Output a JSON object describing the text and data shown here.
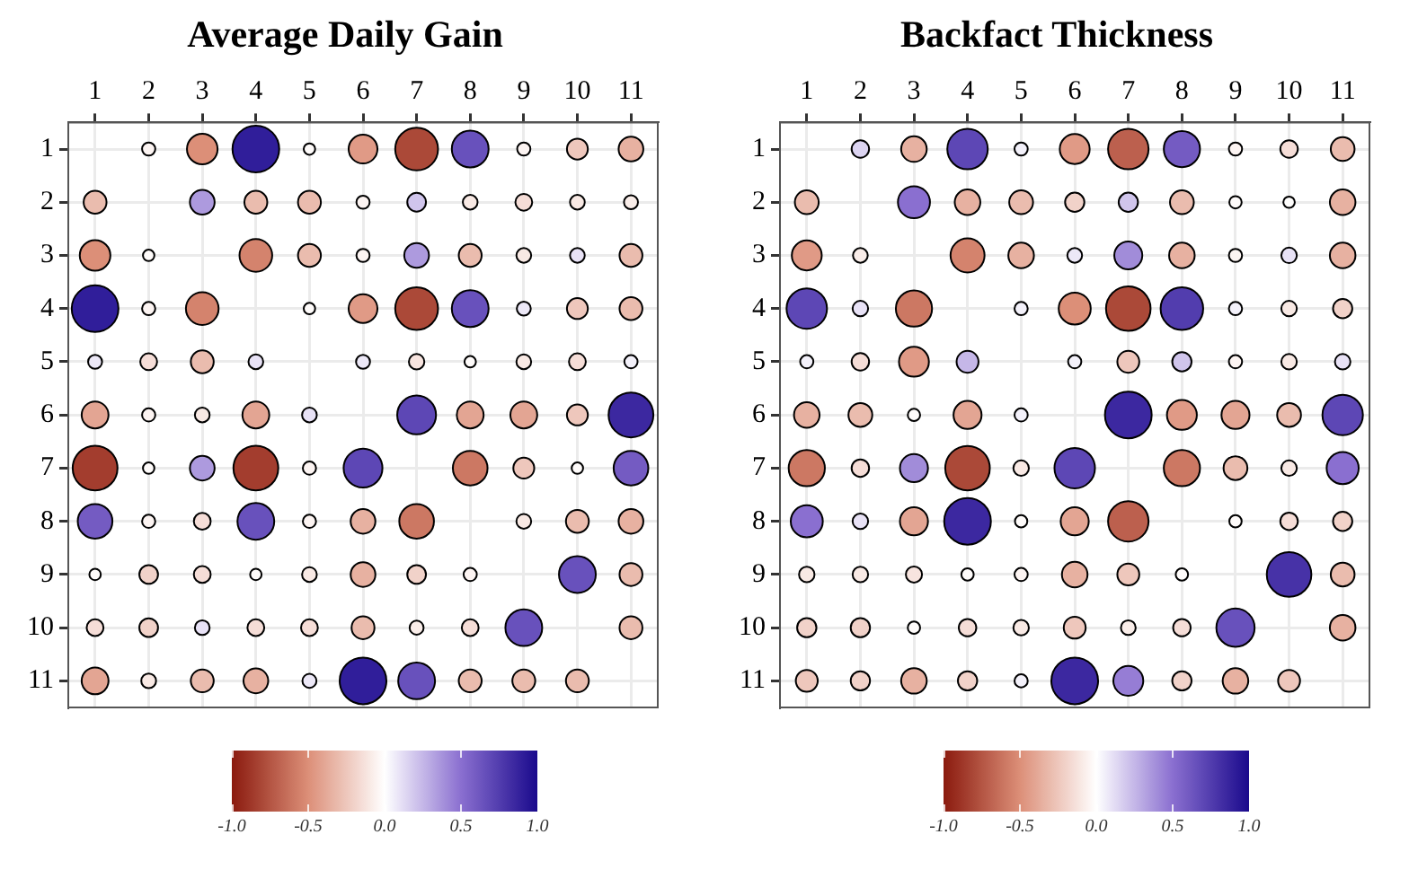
{
  "chart_data": [
    {
      "type": "bubble",
      "title": "Average Daily Gain",
      "xlim": [
        0.5,
        11.5
      ],
      "xticks": [
        1,
        2,
        3,
        4,
        5,
        6,
        7,
        8,
        9,
        10,
        11
      ],
      "ylim": [
        11.5,
        0.5
      ],
      "yticks": [
        1,
        2,
        3,
        4,
        5,
        6,
        7,
        8,
        9,
        10,
        11
      ],
      "grid": true,
      "marker": "circle",
      "clim": [
        -1,
        1
      ],
      "cticks": [
        {
          "value": -1,
          "label": "-1.0"
        },
        {
          "value": -0.5,
          "label": "-0.5"
        },
        {
          "value": 0,
          "label": "0.0"
        },
        {
          "value": 0.5,
          "label": "0.5"
        },
        {
          "value": 1,
          "label": "1.0"
        }
      ],
      "x": [
        2,
        3,
        4,
        5,
        6,
        7,
        8,
        9,
        10,
        11,
        1,
        3,
        4,
        5,
        6,
        7,
        8,
        9,
        10,
        11,
        1,
        2,
        4,
        5,
        6,
        7,
        8,
        9,
        10,
        11,
        1,
        2,
        3,
        5,
        6,
        7,
        8,
        9,
        10,
        11,
        1,
        2,
        3,
        4,
        6,
        7,
        8,
        9,
        10,
        11,
        1,
        2,
        3,
        4,
        5,
        7,
        8,
        9,
        10,
        11,
        1,
        2,
        3,
        4,
        5,
        6,
        8,
        9,
        10,
        11,
        1,
        2,
        3,
        4,
        5,
        6,
        7,
        9,
        10,
        11,
        1,
        2,
        3,
        4,
        5,
        6,
        7,
        8,
        10,
        11,
        1,
        2,
        3,
        4,
        5,
        6,
        7,
        8,
        9,
        11,
        1,
        2,
        3,
        4,
        5,
        6,
        7,
        8,
        9,
        10
      ],
      "values": [
        1,
        1,
        1,
        1,
        1,
        1,
        1,
        1,
        1,
        1,
        2,
        2,
        2,
        2,
        2,
        2,
        2,
        2,
        2,
        2,
        3,
        3,
        3,
        3,
        3,
        3,
        3,
        3,
        3,
        3,
        4,
        4,
        4,
        4,
        4,
        4,
        4,
        4,
        4,
        4,
        5,
        5,
        5,
        5,
        5,
        5,
        5,
        5,
        5,
        5,
        6,
        6,
        6,
        6,
        6,
        6,
        6,
        6,
        6,
        6,
        7,
        7,
        7,
        7,
        7,
        7,
        7,
        7,
        7,
        7,
        8,
        8,
        8,
        8,
        8,
        8,
        8,
        8,
        8,
        8,
        9,
        9,
        9,
        9,
        9,
        9,
        9,
        9,
        9,
        9,
        10,
        10,
        10,
        10,
        10,
        10,
        10,
        10,
        10,
        10,
        11,
        11,
        11,
        11,
        11,
        11,
        11,
        11,
        11,
        11
      ],
      "cvalues": [
        -0.05,
        -0.5,
        0.9,
        -0.02,
        -0.45,
        -0.8,
        0.65,
        -0.05,
        -0.25,
        -0.35,
        -0.3,
        0.35,
        -0.3,
        -0.3,
        -0.05,
        0.2,
        -0.1,
        -0.15,
        -0.1,
        -0.08,
        -0.5,
        -0.02,
        -0.55,
        -0.3,
        -0.05,
        0.35,
        -0.3,
        -0.1,
        0.1,
        -0.3,
        0.9,
        -0.05,
        -0.55,
        -0.02,
        -0.45,
        -0.8,
        0.65,
        0.08,
        -0.25,
        -0.3,
        0.08,
        -0.15,
        -0.3,
        0.1,
        0.08,
        -0.12,
        -0.02,
        -0.1,
        -0.15,
        0.05,
        -0.4,
        -0.05,
        -0.1,
        -0.4,
        0.1,
        0.7,
        -0.4,
        -0.4,
        -0.25,
        0.85,
        -0.85,
        -0.02,
        0.35,
        -0.85,
        -0.05,
        0.7,
        -0.6,
        -0.25,
        -0.02,
        0.6,
        0.6,
        -0.05,
        -0.15,
        0.65,
        -0.05,
        -0.35,
        -0.6,
        -0.1,
        -0.3,
        -0.35,
        -0.02,
        -0.2,
        -0.15,
        -0.02,
        -0.1,
        -0.35,
        -0.2,
        -0.05,
        0.65,
        -0.3,
        -0.15,
        -0.2,
        0.1,
        -0.15,
        -0.15,
        -0.3,
        -0.08,
        -0.15,
        0.65,
        -0.3,
        -0.4,
        -0.1,
        -0.3,
        -0.35,
        0.08,
        0.9,
        0.65,
        -0.3,
        -0.3,
        -0.3
      ],
      "sizes": [
        0.08,
        0.43,
        1,
        0.06,
        0.38,
        0.84,
        0.62,
        0.08,
        0.2,
        0.28,
        0.24,
        0.28,
        0.24,
        0.24,
        0.08,
        0.16,
        0.1,
        0.13,
        0.1,
        0.09,
        0.43,
        0.06,
        0.49,
        0.24,
        0.08,
        0.28,
        0.24,
        0.1,
        0.1,
        0.24,
        1,
        0.08,
        0.49,
        0.06,
        0.38,
        0.84,
        0.62,
        0.09,
        0.2,
        0.24,
        0.09,
        0.13,
        0.24,
        0.1,
        0.09,
        0.11,
        0.06,
        0.1,
        0.13,
        0.08,
        0.33,
        0.08,
        0.1,
        0.33,
        0.1,
        0.69,
        0.33,
        0.33,
        0.2,
        0.92,
        0.92,
        0.06,
        0.28,
        0.92,
        0.08,
        0.69,
        0.55,
        0.2,
        0.06,
        0.55,
        0.55,
        0.08,
        0.13,
        0.62,
        0.08,
        0.28,
        0.55,
        0.1,
        0.24,
        0.28,
        0.06,
        0.16,
        0.13,
        0.06,
        0.1,
        0.28,
        0.16,
        0.08,
        0.62,
        0.24,
        0.13,
        0.16,
        0.1,
        0.13,
        0.13,
        0.24,
        0.09,
        0.13,
        0.62,
        0.24,
        0.33,
        0.1,
        0.24,
        0.28,
        0.09,
        1,
        0.62,
        0.24,
        0.24,
        0.24
      ]
    },
    {
      "type": "bubble",
      "title": "Backfact Thickness",
      "xlim": [
        0.5,
        11.5
      ],
      "xticks": [
        1,
        2,
        3,
        4,
        5,
        6,
        7,
        8,
        9,
        10,
        11
      ],
      "ylim": [
        11.5,
        0.5
      ],
      "yticks": [
        1,
        2,
        3,
        4,
        5,
        6,
        7,
        8,
        9,
        10,
        11
      ],
      "grid": true,
      "marker": "circle",
      "clim": [
        -1,
        1
      ],
      "cticks": [
        {
          "value": -1,
          "label": "-1.0"
        },
        {
          "value": -0.5,
          "label": "-0.5"
        },
        {
          "value": 0,
          "label": "0.0"
        },
        {
          "value": 0.5,
          "label": "0.5"
        },
        {
          "value": 1,
          "label": "1.0"
        }
      ],
      "x": [
        2,
        3,
        4,
        5,
        6,
        7,
        8,
        9,
        10,
        11,
        1,
        3,
        4,
        5,
        6,
        7,
        8,
        9,
        10,
        11,
        1,
        2,
        4,
        5,
        6,
        7,
        8,
        9,
        10,
        11,
        1,
        2,
        3,
        5,
        6,
        7,
        8,
        9,
        10,
        11,
        1,
        2,
        3,
        4,
        6,
        7,
        8,
        9,
        10,
        11,
        1,
        2,
        3,
        4,
        5,
        7,
        8,
        9,
        10,
        11,
        1,
        2,
        3,
        4,
        5,
        6,
        8,
        9,
        10,
        11,
        1,
        2,
        3,
        4,
        5,
        6,
        7,
        9,
        10,
        11,
        1,
        2,
        3,
        4,
        5,
        6,
        7,
        8,
        10,
        11,
        1,
        2,
        3,
        4,
        5,
        6,
        7,
        8,
        9,
        11,
        1,
        2,
        3,
        4,
        5,
        6,
        7,
        8,
        9,
        10
      ],
      "values": [
        1,
        1,
        1,
        1,
        1,
        1,
        1,
        1,
        1,
        1,
        2,
        2,
        2,
        2,
        2,
        2,
        2,
        2,
        2,
        2,
        3,
        3,
        3,
        3,
        3,
        3,
        3,
        3,
        3,
        3,
        4,
        4,
        4,
        4,
        4,
        4,
        4,
        4,
        4,
        4,
        5,
        5,
        5,
        5,
        5,
        5,
        5,
        5,
        5,
        5,
        6,
        6,
        6,
        6,
        6,
        6,
        6,
        6,
        6,
        6,
        7,
        7,
        7,
        7,
        7,
        7,
        7,
        7,
        7,
        7,
        8,
        8,
        8,
        8,
        8,
        8,
        8,
        8,
        8,
        8,
        9,
        9,
        9,
        9,
        9,
        9,
        9,
        9,
        9,
        9,
        10,
        10,
        10,
        10,
        10,
        10,
        10,
        10,
        10,
        10,
        11,
        11,
        11,
        11,
        11,
        11,
        11,
        11,
        11,
        11
      ],
      "cvalues": [
        0.15,
        -0.35,
        0.7,
        0.05,
        -0.45,
        -0.7,
        0.6,
        -0.05,
        -0.15,
        -0.3,
        -0.3,
        0.5,
        -0.35,
        -0.3,
        -0.2,
        0.2,
        -0.3,
        -0.02,
        -0.01,
        -0.35,
        -0.45,
        -0.08,
        -0.55,
        -0.35,
        0.08,
        0.4,
        -0.35,
        -0.05,
        0.1,
        -0.35,
        0.7,
        0.1,
        -0.6,
        0.05,
        -0.5,
        -0.8,
        0.75,
        0.05,
        -0.1,
        -0.2,
        0.05,
        -0.15,
        -0.45,
        0.25,
        0.05,
        -0.25,
        0.2,
        -0.05,
        -0.1,
        0.1,
        -0.35,
        -0.3,
        -0.02,
        -0.4,
        0.05,
        0.85,
        -0.45,
        -0.4,
        -0.3,
        0.7,
        -0.6,
        -0.15,
        0.4,
        -0.8,
        -0.1,
        0.7,
        -0.6,
        -0.3,
        -0.1,
        0.5,
        0.5,
        0.1,
        -0.4,
        0.85,
        -0.02,
        -0.4,
        -0.7,
        -0.02,
        -0.15,
        -0.2,
        -0.1,
        -0.1,
        -0.12,
        -0.02,
        -0.05,
        -0.35,
        -0.25,
        -0.02,
        0.8,
        -0.3,
        -0.2,
        -0.2,
        -0.02,
        -0.15,
        -0.1,
        -0.25,
        -0.08,
        -0.15,
        0.65,
        -0.35,
        -0.25,
        -0.2,
        -0.35,
        -0.2,
        0.05,
        0.85,
        0.45,
        -0.2,
        -0.35,
        -0.25
      ],
      "sizes": [
        0.14,
        0.3,
        0.75,
        0.08,
        0.41,
        0.75,
        0.6,
        0.08,
        0.14,
        0.26,
        0.26,
        0.47,
        0.3,
        0.26,
        0.17,
        0.17,
        0.26,
        0.07,
        0.06,
        0.3,
        0.41,
        0.1,
        0.53,
        0.3,
        0.1,
        0.36,
        0.3,
        0.08,
        0.11,
        0.3,
        0.75,
        0.11,
        0.6,
        0.08,
        0.47,
        0.91,
        0.83,
        0.08,
        0.11,
        0.17,
        0.08,
        0.14,
        0.41,
        0.22,
        0.08,
        0.22,
        0.17,
        0.08,
        0.11,
        0.11,
        0.3,
        0.26,
        0.07,
        0.36,
        0.08,
        1,
        0.41,
        0.36,
        0.26,
        0.75,
        0.6,
        0.14,
        0.36,
        0.91,
        0.11,
        0.75,
        0.6,
        0.26,
        0.11,
        0.47,
        0.47,
        0.11,
        0.36,
        1,
        0.07,
        0.36,
        0.75,
        0.07,
        0.14,
        0.17,
        0.11,
        0.11,
        0.12,
        0.07,
        0.08,
        0.3,
        0.22,
        0.07,
        0.91,
        0.26,
        0.17,
        0.17,
        0.07,
        0.14,
        0.11,
        0.22,
        0.1,
        0.14,
        0.67,
        0.3,
        0.22,
        0.17,
        0.3,
        0.17,
        0.08,
        1,
        0.41,
        0.17,
        0.3,
        0.22
      ]
    }
  ]
}
